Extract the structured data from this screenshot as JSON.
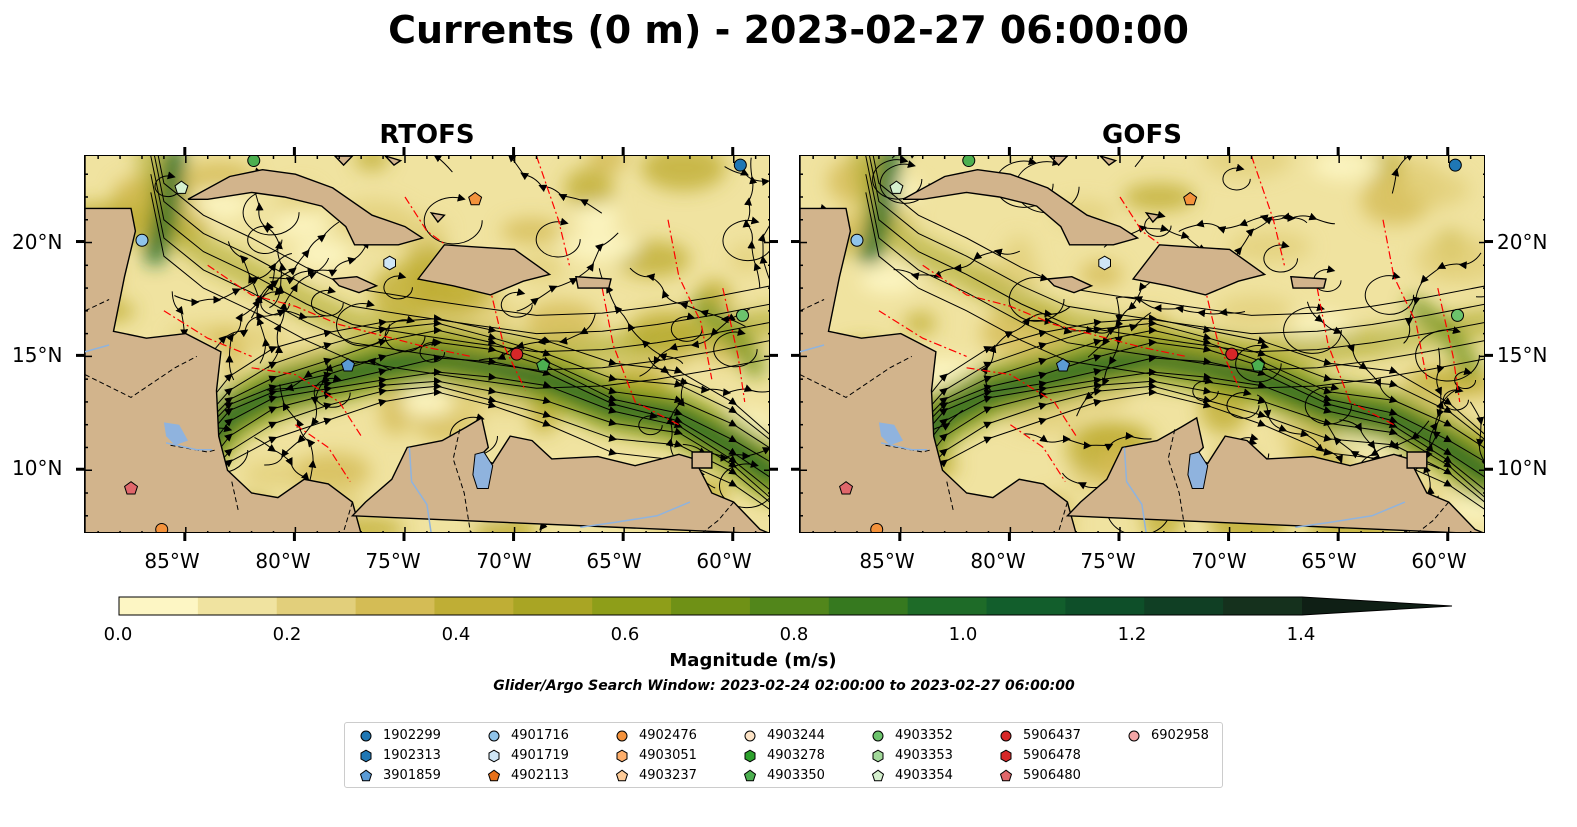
{
  "title": "Currents (0 m) - 2023-02-27 06:00:00",
  "panels": [
    {
      "title": "RTOFS"
    },
    {
      "title": "GOFS"
    }
  ],
  "lat_labels": [
    "20°N",
    "15°N",
    "10°N"
  ],
  "lon_labels": [
    "85°W",
    "80°W",
    "75°W",
    "70°W",
    "65°W",
    "60°W"
  ],
  "map_extent": {
    "lon_min": -89.6,
    "lon_max": -58.3,
    "lat_min": 7.2,
    "lat_max": 23.8
  },
  "colorbar": {
    "label": "Magnitude (m/s)",
    "ticks": [
      "0.0",
      "0.2",
      "0.4",
      "0.6",
      "0.8",
      "1.0",
      "1.2",
      "1.4"
    ],
    "range": [
      0.0,
      1.5
    ],
    "levels": [
      "#fdf6c4",
      "#f0e3a0",
      "#e2cf7b",
      "#d4bc55",
      "#bfae35",
      "#a9a524",
      "#8e9e19",
      "#6f9116",
      "#52861b",
      "#36791f",
      "#1e6b28",
      "#125e2c",
      "#0e4f29",
      "#103f24",
      "#15311d"
    ],
    "extend": "max"
  },
  "search_window": "Glider/Argo Search Window: 2023-02-24 02:00:00 to 2023-02-27 06:00:00",
  "colors": {
    "land": "#d2b48c",
    "lakes": "#8fb3de",
    "eez_boundary": "#ff0000",
    "streamlines": "#000000"
  },
  "platforms": [
    {
      "id": "1902299",
      "color": "#1f77b4",
      "marker": "circle"
    },
    {
      "id": "1902313",
      "color": "#1f77b4",
      "marker": "hexagon"
    },
    {
      "id": "3901859",
      "color": "#5b9bd5",
      "marker": "pentagon"
    },
    {
      "id": "4901716",
      "color": "#90c4ea",
      "marker": "circle"
    },
    {
      "id": "4901719",
      "color": "#cfe6f6",
      "marker": "hexagon"
    },
    {
      "id": "4902113",
      "color": "#e8711a",
      "marker": "pentagon"
    },
    {
      "id": "4902476",
      "color": "#f4923b",
      "marker": "circle"
    },
    {
      "id": "4903051",
      "color": "#fdae6b",
      "marker": "hexagon"
    },
    {
      "id": "4903237",
      "color": "#fdcb98",
      "marker": "pentagon"
    },
    {
      "id": "4903244",
      "color": "#fde3c6",
      "marker": "circle"
    },
    {
      "id": "4903278",
      "color": "#2ca02c",
      "marker": "hexagon"
    },
    {
      "id": "4903350",
      "color": "#4caf50",
      "marker": "pentagon"
    },
    {
      "id": "4903352",
      "color": "#6cc36c",
      "marker": "circle"
    },
    {
      "id": "4903353",
      "color": "#a2d99a",
      "marker": "hexagon"
    },
    {
      "id": "4903354",
      "color": "#d5f0ce",
      "marker": "pentagon"
    },
    {
      "id": "5906437",
      "color": "#d62728",
      "marker": "circle"
    },
    {
      "id": "5906478",
      "color": "#d62728",
      "marker": "hexagon"
    },
    {
      "id": "5906480",
      "color": "#e0676b",
      "marker": "pentagon"
    },
    {
      "id": "6902958",
      "color": "#f4a6a6",
      "marker": "circle"
    }
  ],
  "platform_positions": [
    {
      "color": "#1f77b4",
      "marker": "circle",
      "lon": -59.7,
      "lat": 23.4
    },
    {
      "color": "#4caf50",
      "marker": "circle",
      "lon": -81.9,
      "lat": 23.6
    },
    {
      "color": "#d5f0ce",
      "marker": "pentagon",
      "lon": -85.2,
      "lat": 22.4
    },
    {
      "color": "#f4923b",
      "marker": "pentagon",
      "lon": -71.8,
      "lat": 21.9
    },
    {
      "color": "#90c4ea",
      "marker": "circle",
      "lon": -87.0,
      "lat": 20.1
    },
    {
      "color": "#cfe6f6",
      "marker": "hexagon",
      "lon": -75.7,
      "lat": 19.1
    },
    {
      "color": "#6cc36c",
      "marker": "circle",
      "lon": -59.6,
      "lat": 16.8
    },
    {
      "color": "#d62728",
      "marker": "circle",
      "lon": -69.9,
      "lat": 15.1
    },
    {
      "color": "#4caf50",
      "marker": "pentagon",
      "lon": -68.7,
      "lat": 14.6
    },
    {
      "color": "#5b9bd5",
      "marker": "pentagon",
      "lon": -77.6,
      "lat": 14.6
    },
    {
      "color": "#e0676b",
      "marker": "pentagon",
      "lon": -87.5,
      "lat": 9.2
    },
    {
      "color": "#f4923b",
      "marker": "circle",
      "lon": -86.1,
      "lat": 7.4
    }
  ]
}
